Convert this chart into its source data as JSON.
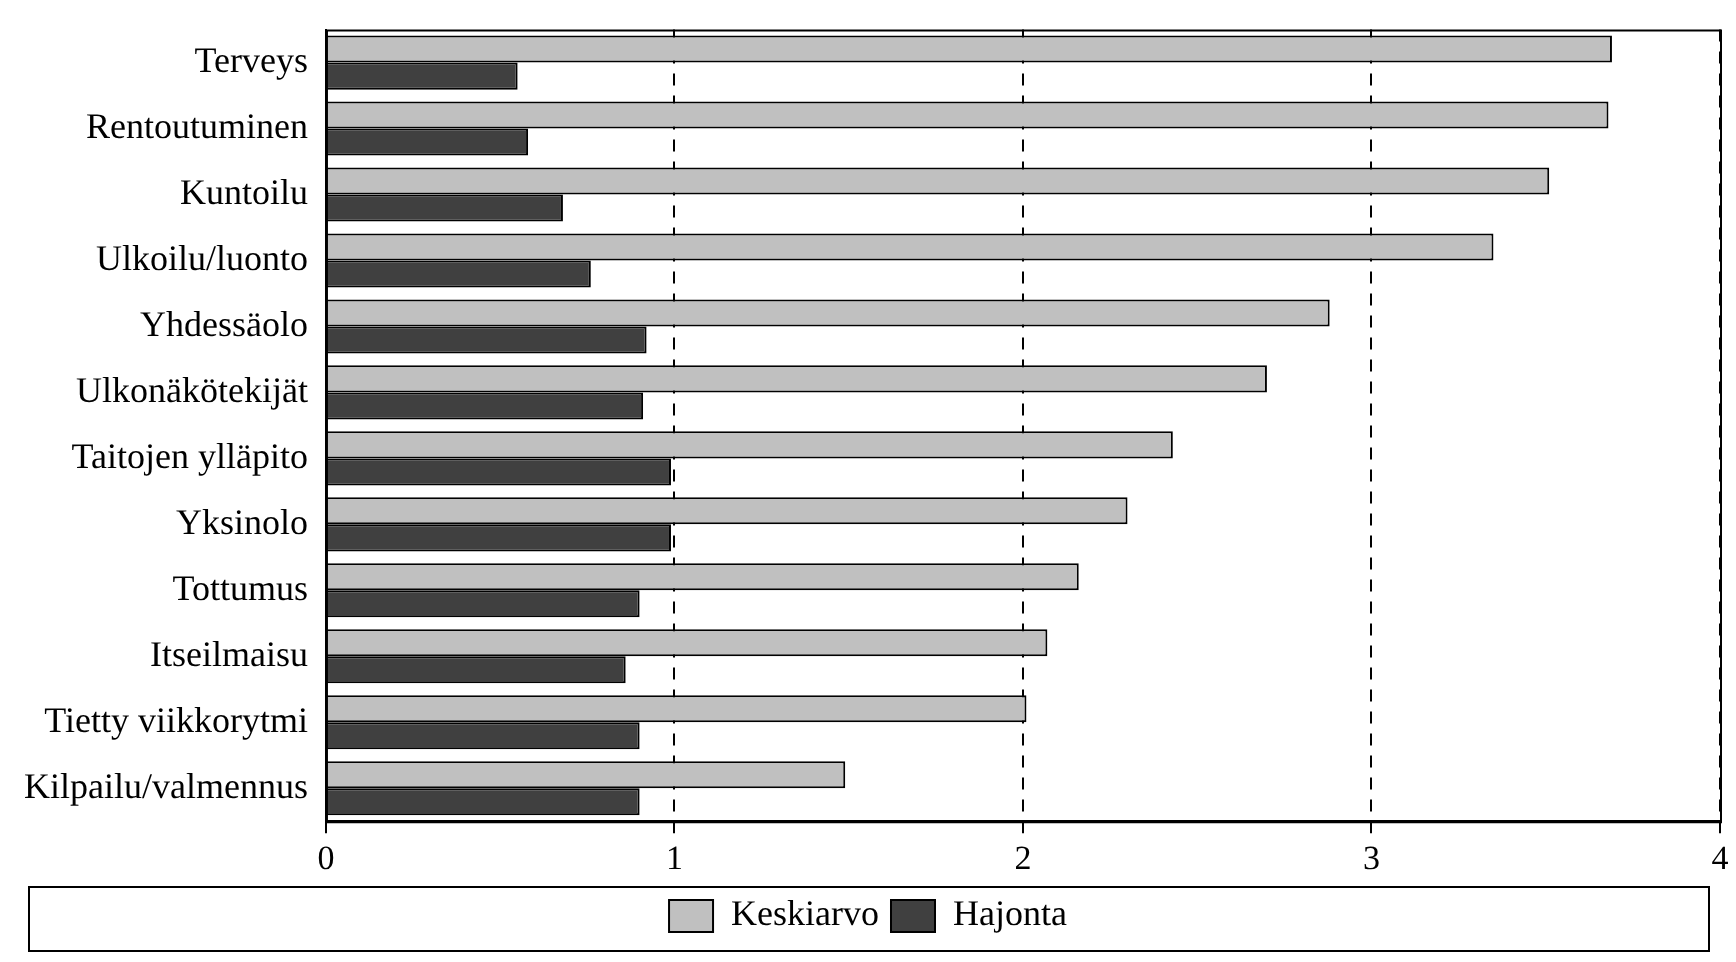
{
  "chart_data": {
    "type": "bar",
    "orientation": "horizontal",
    "categories": [
      "Terveys",
      "Rentoutuminen",
      "Kuntoilu",
      "Ulkoilu/luonto",
      "Yhdessäolo",
      "Ulkonäkötekijät",
      "Taitojen ylläpito",
      "Yksinolo",
      "Tottumus",
      "Itseilmaisu",
      "Tietty viikkorytmi",
      "Kilpailu/valmennus"
    ],
    "series": [
      {
        "name": "Keskiarvo",
        "color": "#c0c0c0",
        "values": [
          3.69,
          3.68,
          3.51,
          3.35,
          2.88,
          2.7,
          2.43,
          2.3,
          2.16,
          2.07,
          2.01,
          1.49
        ]
      },
      {
        "name": "Hajonta",
        "color": "#404040",
        "values": [
          0.55,
          0.58,
          0.68,
          0.76,
          0.92,
          0.91,
          0.99,
          0.99,
          0.9,
          0.86,
          0.9,
          0.9
        ]
      }
    ],
    "xlim": [
      0,
      4
    ],
    "xticks": [
      0,
      1,
      2,
      3,
      4
    ],
    "grid": "x",
    "legend": "bottom"
  }
}
